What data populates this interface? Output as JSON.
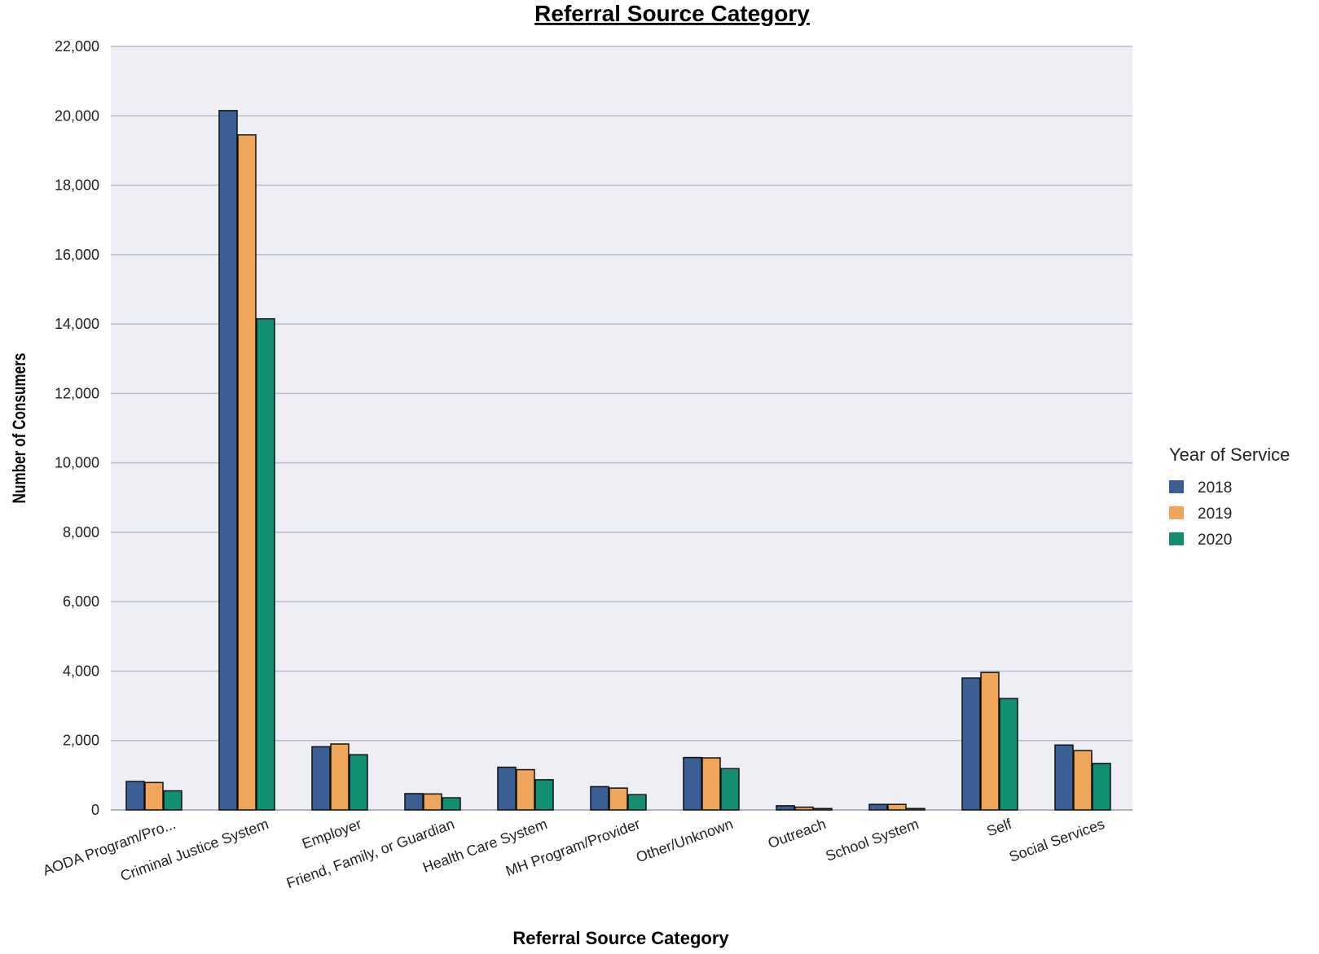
{
  "chart_data": {
    "type": "bar",
    "title": "Referral Source Category",
    "xlabel": "Referral Source Category",
    "ylabel": "Number of Consumers",
    "ylim": [
      0,
      22000
    ],
    "yticks": [
      0,
      2000,
      4000,
      6000,
      8000,
      10000,
      12000,
      14000,
      16000,
      18000,
      20000,
      22000
    ],
    "ytick_labels": [
      "0",
      "2,000",
      "4,000",
      "6,000",
      "8,000",
      "10,000",
      "12,000",
      "14,000",
      "16,000",
      "18,000",
      "20,000",
      "22,000"
    ],
    "grid": true,
    "legend_title": "Year of Service",
    "legend_position": "right",
    "categories": [
      "AODA Program/Pro...",
      "Criminal Justice System",
      "Employer",
      "Friend, Family, or Guardian",
      "Health Care System",
      "MH Program/Provider",
      "Other/Unknown",
      "Outreach",
      "School System",
      "Self",
      "Social Services"
    ],
    "series": [
      {
        "name": "2018",
        "color": "#3a5f94",
        "values": [
          820,
          20150,
          1820,
          470,
          1230,
          670,
          1510,
          120,
          160,
          3800,
          1870
        ]
      },
      {
        "name": "2019",
        "color": "#f0a65a",
        "values": [
          790,
          19450,
          1900,
          460,
          1160,
          630,
          1500,
          80,
          160,
          3960,
          1710
        ]
      },
      {
        "name": "2020",
        "color": "#128f73",
        "values": [
          550,
          14150,
          1590,
          350,
          870,
          440,
          1190,
          40,
          40,
          3210,
          1340
        ]
      }
    ]
  }
}
